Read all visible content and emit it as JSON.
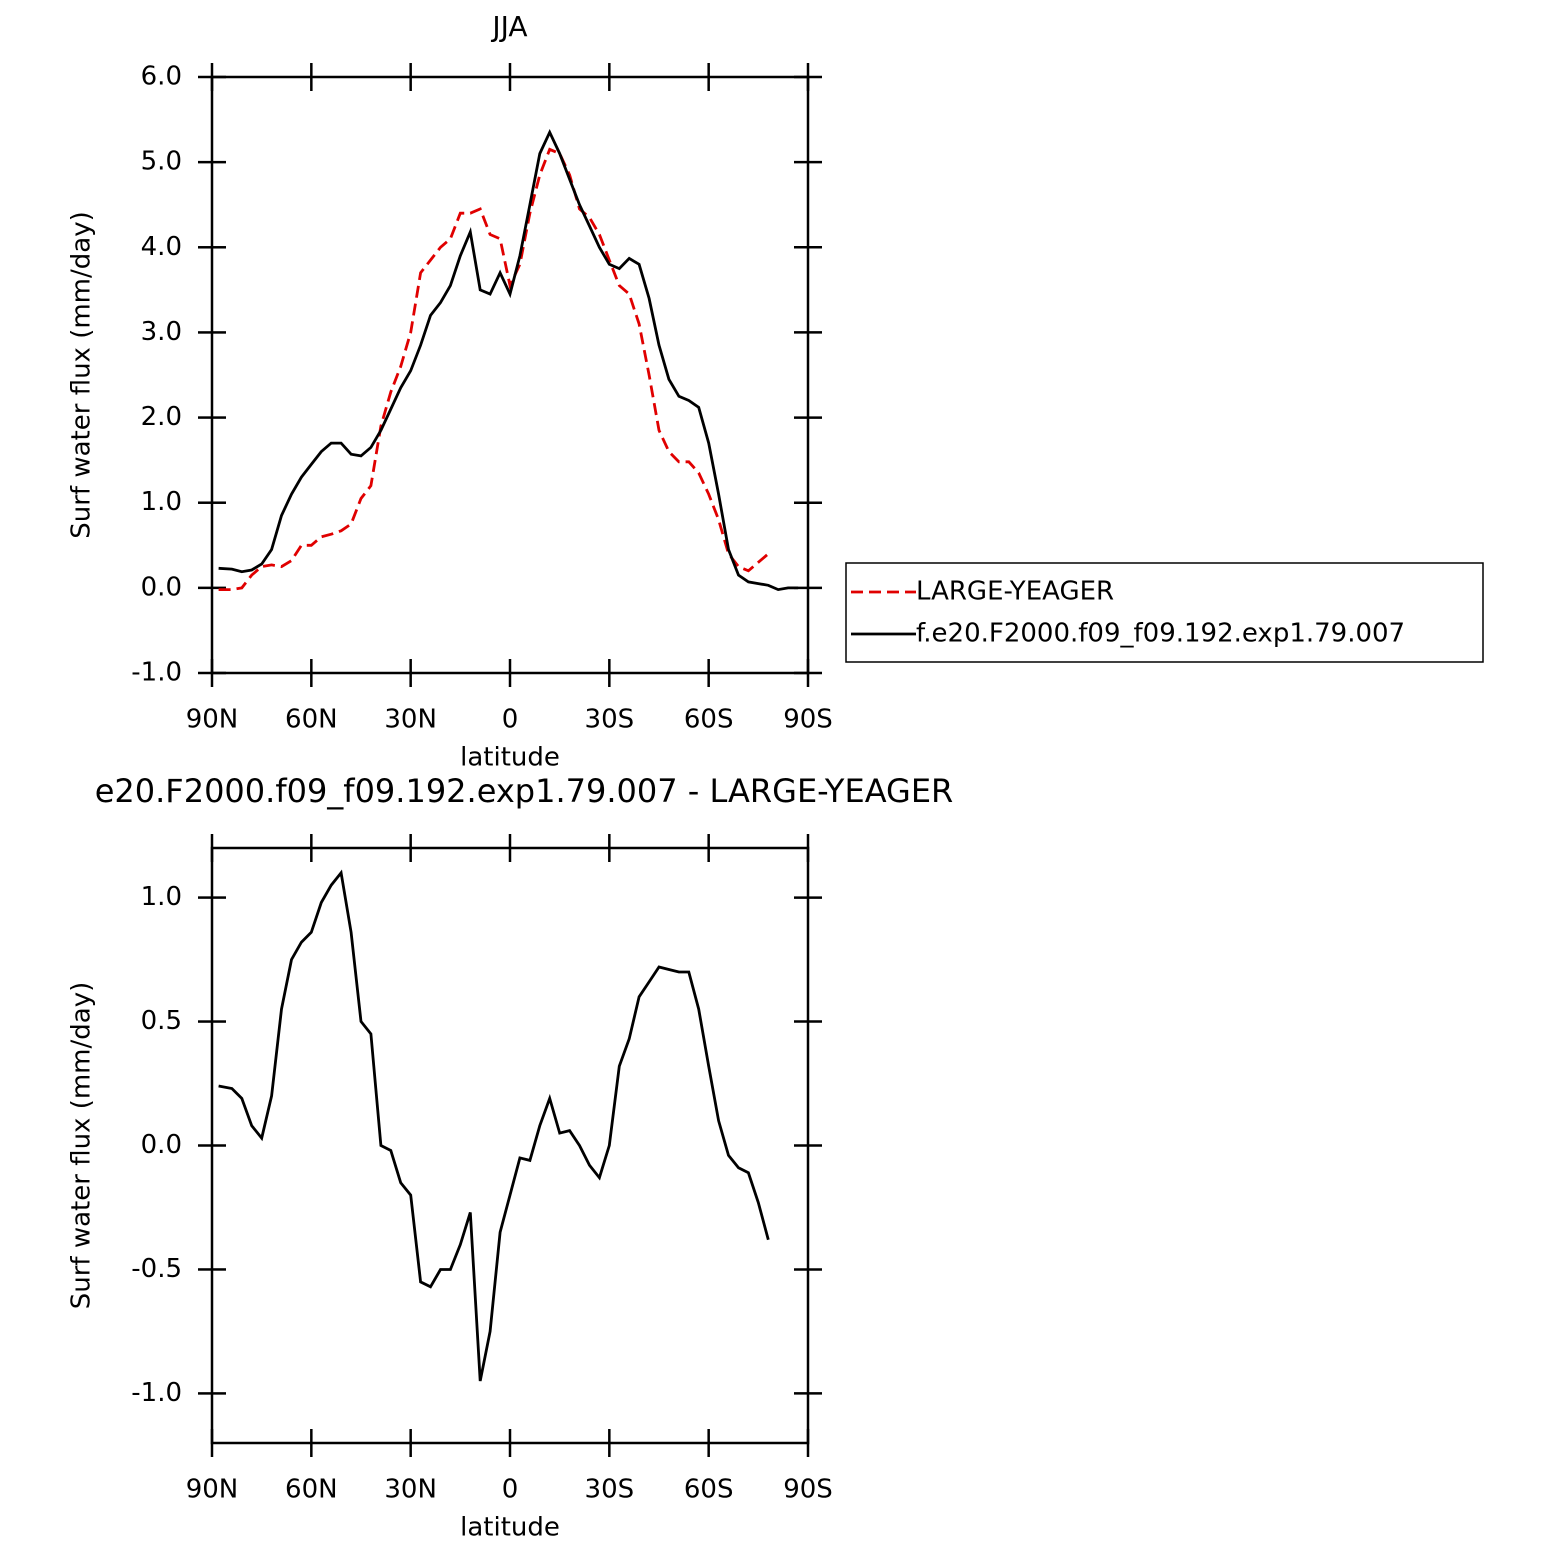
{
  "chart_data": [
    {
      "type": "line",
      "title": "JJA",
      "xlabel": "latitude",
      "ylabel": "Surf water flux (mm/day)",
      "x": [
        88,
        84,
        81,
        78,
        75,
        72,
        69,
        66,
        63,
        60,
        57,
        54,
        51,
        48,
        45,
        42,
        39,
        36,
        33,
        30,
        27,
        24,
        21,
        18,
        15,
        12,
        9,
        6,
        3,
        0,
        -3,
        -6,
        -9,
        -12,
        -15,
        -18,
        -21,
        -24,
        -27,
        -30,
        -33,
        -36,
        -39,
        -42,
        -45,
        -48,
        -51,
        -54,
        -57,
        -60,
        -63,
        -66,
        -69,
        -72,
        -75,
        -78,
        -81,
        -84,
        -87
      ],
      "xlim": [
        90,
        -90
      ],
      "xticks": [
        {
          "value": 90,
          "label": "90N"
        },
        {
          "value": 60,
          "label": "60N"
        },
        {
          "value": 30,
          "label": "30N"
        },
        0,
        {
          "value": -30,
          "label": "30S"
        },
        {
          "value": -60,
          "label": "60S"
        },
        {
          "value": -90,
          "label": "90S"
        }
      ],
      "ylim": [
        -1,
        6
      ],
      "yticks": [
        {
          "value": -1,
          "label": "-1.0"
        },
        {
          "value": 0,
          "label": "0.0"
        },
        {
          "value": 1,
          "label": "1.0"
        },
        {
          "value": 2,
          "label": "2.0"
        },
        {
          "value": 3,
          "label": "3.0"
        },
        {
          "value": 4,
          "label": "4.0"
        },
        {
          "value": 5,
          "label": "5.0"
        },
        {
          "value": 6,
          "label": "6.0"
        }
      ],
      "legend": "right",
      "series": [
        {
          "name": "LARGE-YEAGER",
          "color": "#e00000",
          "linestyle": "dashed",
          "values": [
            -0.02,
            -0.02,
            0.0,
            0.15,
            0.25,
            0.27,
            0.25,
            0.32,
            0.5,
            0.5,
            0.6,
            0.63,
            0.67,
            0.75,
            1.05,
            1.2,
            1.9,
            2.3,
            2.6,
            3.0,
            3.7,
            3.85,
            4.0,
            4.1,
            4.4,
            4.4,
            4.45,
            4.15,
            4.1,
            3.55,
            3.8,
            4.4,
            4.85,
            5.15,
            5.1,
            4.85,
            4.45,
            4.35,
            4.15,
            3.85,
            3.55,
            3.45,
            3.1,
            2.5,
            1.85,
            1.6,
            1.48,
            1.48,
            1.35,
            1.1,
            0.8,
            0.4,
            0.25,
            0.2,
            0.3,
            0.4,
            null,
            null,
            null
          ]
        },
        {
          "name": "f.e20.F2000.f09_f09.192.exp1.79.007",
          "color": "#000000",
          "linestyle": "solid",
          "values": [
            0.23,
            0.22,
            0.19,
            0.21,
            0.28,
            0.45,
            0.85,
            1.1,
            1.3,
            1.45,
            1.6,
            1.7,
            1.7,
            1.57,
            1.55,
            1.65,
            1.85,
            2.1,
            2.35,
            2.55,
            2.85,
            3.2,
            3.35,
            3.55,
            3.9,
            4.18,
            3.5,
            3.45,
            3.7,
            3.45,
            3.9,
            4.5,
            5.1,
            5.35,
            5.1,
            4.8,
            4.5,
            4.25,
            4.0,
            3.8,
            3.75,
            3.87,
            3.8,
            3.4,
            2.85,
            2.45,
            2.25,
            2.2,
            2.12,
            1.7,
            1.1,
            0.45,
            0.15,
            0.07,
            0.05,
            0.03,
            -0.02,
            0.0,
            0.0
          ]
        }
      ]
    },
    {
      "type": "line",
      "title": "e20.F2000.f09_f09.192.exp1.79.007 - LARGE-YEAGER",
      "xlabel": "latitude",
      "ylabel": "Surf water flux (mm/day)",
      "x": [
        88,
        84,
        81,
        78,
        75,
        72,
        69,
        66,
        63,
        60,
        57,
        54,
        51,
        48,
        45,
        42,
        39,
        36,
        33,
        30,
        27,
        24,
        21,
        18,
        15,
        12,
        9,
        6,
        3,
        0,
        -3,
        -6,
        -9,
        -12,
        -15,
        -18,
        -21,
        -24,
        -27,
        -30,
        -33,
        -36,
        -39,
        -42,
        -45,
        -48,
        -51,
        -54,
        -57,
        -60,
        -63,
        -66,
        -69,
        -72,
        -75,
        -78,
        -81,
        -84,
        -87
      ],
      "xlim": [
        90,
        -90
      ],
      "xticks": [
        {
          "value": 90,
          "label": "90N"
        },
        {
          "value": 60,
          "label": "60N"
        },
        {
          "value": 30,
          "label": "30N"
        },
        0,
        {
          "value": -30,
          "label": "30S"
        },
        {
          "value": -60,
          "label": "60S"
        },
        {
          "value": -90,
          "label": "90S"
        }
      ],
      "ylim": [
        -1.2,
        1.2
      ],
      "yticks": [
        {
          "value": -1,
          "label": "-1.0"
        },
        {
          "value": -0.5,
          "label": "-0.5"
        },
        {
          "value": 0,
          "label": "0.0"
        },
        {
          "value": 0.5,
          "label": "0.5"
        },
        {
          "value": 1,
          "label": "1.0"
        }
      ],
      "series": [
        {
          "color": "#000000",
          "linestyle": "solid",
          "values": [
            0.24,
            0.23,
            0.19,
            0.08,
            0.03,
            0.2,
            0.55,
            0.75,
            0.82,
            0.86,
            0.98,
            1.05,
            1.1,
            0.86,
            0.5,
            0.45,
            0.0,
            -0.02,
            -0.15,
            -0.2,
            -0.55,
            -0.57,
            -0.5,
            -0.5,
            -0.4,
            -0.27,
            -0.95,
            -0.75,
            -0.35,
            -0.2,
            -0.05,
            -0.06,
            0.08,
            0.19,
            0.05,
            0.06,
            0.0,
            -0.08,
            -0.13,
            0.0,
            0.32,
            0.43,
            0.6,
            0.66,
            0.72,
            0.71,
            0.7,
            0.7,
            0.55,
            0.32,
            0.1,
            -0.04,
            -0.09,
            -0.11,
            -0.23,
            -0.38,
            null,
            null,
            null
          ]
        }
      ]
    }
  ]
}
